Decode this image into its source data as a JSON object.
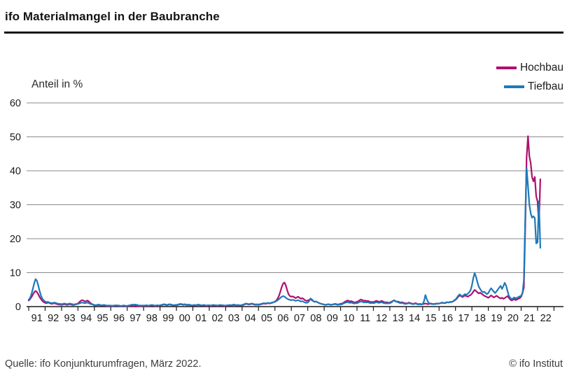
{
  "header": {
    "title": "ifo Materialmangel in der Baubranche"
  },
  "axis_unit_label": "Anteil in %",
  "legend": [
    {
      "label": "Hochbau",
      "color": "#ae106f"
    },
    {
      "label": "Tiefbau",
      "color": "#1e79ba"
    }
  ],
  "footer": {
    "source": "Quelle: ifo Konjunkturumfragen, März 2022.",
    "copyright": "© ifo Institut"
  },
  "chart_data": {
    "type": "line",
    "title": "ifo Materialmangel in der Baubranche",
    "ylabel": "Anteil in %",
    "xlabel": "",
    "ylim": [
      0,
      60
    ],
    "yticks": [
      0,
      10,
      20,
      30,
      40,
      50,
      60
    ],
    "grid": "horizontal",
    "legend_position": "top-right",
    "x_start": "1991-01",
    "x_end": "2022-03",
    "frequency": "monthly",
    "xtick_labels": [
      "91",
      "92",
      "93",
      "94",
      "95",
      "96",
      "97",
      "98",
      "99",
      "00",
      "01",
      "02",
      "03",
      "04",
      "05",
      "06",
      "07",
      "08",
      "09",
      "10",
      "11",
      "12",
      "13",
      "14",
      "15",
      "16",
      "17",
      "18",
      "19",
      "20",
      "21",
      "22"
    ],
    "series": [
      {
        "name": "Hochbau",
        "color": "#ae106f",
        "values": [
          1.8,
          2.2,
          2.8,
          3.5,
          4.2,
          4.6,
          4.3,
          3.6,
          2.8,
          2.2,
          1.7,
          1.3,
          1.1,
          1.0,
          1.2,
          1.1,
          0.9,
          0.8,
          0.9,
          1.0,
          0.8,
          0.7,
          0.6,
          0.6,
          0.5,
          0.6,
          0.7,
          0.6,
          0.5,
          0.6,
          0.7,
          0.6,
          0.5,
          0.5,
          0.6,
          0.7,
          0.9,
          1.3,
          1.7,
          1.9,
          1.8,
          1.5,
          1.6,
          1.8,
          1.5,
          1.1,
          0.8,
          0.6,
          0.4,
          0.3,
          0.4,
          0.5,
          0.4,
          0.3,
          0.3,
          0.4,
          0.3,
          0.2,
          0.2,
          0.2,
          0.2,
          0.1,
          0.2,
          0.2,
          0.3,
          0.2,
          0.2,
          0.1,
          0.1,
          0.2,
          0.2,
          0.1,
          0.1,
          0.2,
          0.2,
          0.3,
          0.2,
          0.2,
          0.3,
          0.2,
          0.2,
          0.1,
          0.1,
          0.2,
          0.2,
          0.2,
          0.3,
          0.2,
          0.2,
          0.3,
          0.4,
          0.3,
          0.2,
          0.2,
          0.3,
          0.2,
          0.3,
          0.4,
          0.5,
          0.6,
          0.5,
          0.4,
          0.5,
          0.6,
          0.5,
          0.4,
          0.3,
          0.4,
          0.4,
          0.5,
          0.6,
          0.7,
          0.6,
          0.5,
          0.6,
          0.5,
          0.4,
          0.5,
          0.4,
          0.3,
          0.3,
          0.4,
          0.3,
          0.4,
          0.5,
          0.4,
          0.3,
          0.3,
          0.4,
          0.3,
          0.2,
          0.3,
          0.3,
          0.2,
          0.3,
          0.4,
          0.3,
          0.3,
          0.2,
          0.3,
          0.4,
          0.3,
          0.3,
          0.2,
          0.2,
          0.3,
          0.3,
          0.4,
          0.3,
          0.4,
          0.5,
          0.4,
          0.3,
          0.4,
          0.3,
          0.3,
          0.4,
          0.5,
          0.7,
          0.8,
          0.7,
          0.6,
          0.7,
          0.8,
          0.7,
          0.6,
          0.5,
          0.6,
          0.5,
          0.6,
          0.7,
          0.8,
          0.9,
          0.8,
          0.9,
          1.0,
          0.9,
          1.0,
          1.1,
          1.3,
          1.5,
          1.8,
          2.4,
          3.2,
          4.5,
          5.8,
          6.8,
          7.1,
          6.2,
          4.8,
          3.6,
          3.1,
          2.9,
          3.0,
          2.8,
          2.5,
          2.7,
          2.9,
          2.6,
          2.3,
          2.5,
          2.2,
          1.9,
          1.7,
          1.8,
          2.0,
          2.2,
          1.9,
          1.6,
          1.4,
          1.5,
          1.3,
          1.1,
          0.9,
          0.8,
          0.7,
          0.6,
          0.5,
          0.6,
          0.7,
          0.6,
          0.5,
          0.6,
          0.7,
          0.8,
          0.7,
          0.6,
          0.7,
          0.8,
          0.9,
          1.1,
          1.4,
          1.6,
          1.8,
          1.7,
          1.5,
          1.6,
          1.4,
          1.2,
          1.3,
          1.4,
          1.6,
          1.9,
          2.1,
          1.9,
          1.7,
          1.8,
          1.6,
          1.7,
          1.5,
          1.3,
          1.4,
          1.3,
          1.5,
          1.7,
          1.6,
          1.4,
          1.5,
          1.7,
          1.5,
          1.3,
          1.2,
          1.3,
          1.1,
          1.2,
          1.4,
          1.6,
          1.8,
          1.6,
          1.4,
          1.5,
          1.3,
          1.2,
          1.3,
          1.1,
          1.0,
          0.9,
          1.0,
          1.2,
          1.0,
          0.9,
          0.8,
          0.9,
          1.0,
          0.8,
          0.7,
          0.8,
          0.7,
          0.7,
          0.8,
          0.9,
          0.8,
          0.7,
          0.8,
          0.9,
          0.8,
          0.7,
          0.8,
          0.9,
          0.8,
          0.9,
          1.0,
          1.2,
          1.1,
          1.0,
          1.1,
          1.3,
          1.2,
          1.4,
          1.3,
          1.5,
          1.7,
          2.0,
          2.4,
          2.9,
          3.3,
          3.1,
          2.8,
          3.0,
          3.3,
          3.1,
          2.9,
          3.2,
          3.4,
          3.8,
          4.4,
          4.9,
          4.6,
          4.2,
          3.9,
          4.1,
          3.8,
          3.5,
          3.2,
          3.0,
          2.8,
          2.6,
          2.9,
          3.3,
          3.0,
          2.7,
          2.9,
          3.2,
          2.9,
          2.6,
          2.4,
          2.6,
          2.3,
          2.5,
          2.8,
          3.1,
          2.6,
          2.1,
          1.8,
          2.0,
          2.2,
          1.9,
          2.1,
          2.3,
          2.5,
          2.9,
          4.0,
          5.6,
          23.9,
          43.9,
          50.2,
          44.3,
          42.2,
          38.1,
          36.9,
          38.2,
          32.5,
          31.0,
          24.3,
          37.5
        ]
      },
      {
        "name": "Tiefbau",
        "color": "#1e79ba",
        "values": [
          2.0,
          2.6,
          3.6,
          5.2,
          6.8,
          8.1,
          7.6,
          6.2,
          4.6,
          3.2,
          2.3,
          1.8,
          1.5,
          1.3,
          1.4,
          1.2,
          1.1,
          1.0,
          1.1,
          1.2,
          1.0,
          0.9,
          0.8,
          0.8,
          0.7,
          0.8,
          0.9,
          0.8,
          0.7,
          0.8,
          0.9,
          0.8,
          0.7,
          0.6,
          0.7,
          0.8,
          0.8,
          0.9,
          1.1,
          1.2,
          1.1,
          1.0,
          1.1,
          1.2,
          1.0,
          0.8,
          0.7,
          0.6,
          0.5,
          0.4,
          0.5,
          0.6,
          0.5,
          0.4,
          0.4,
          0.5,
          0.4,
          0.3,
          0.3,
          0.3,
          0.3,
          0.2,
          0.3,
          0.3,
          0.4,
          0.3,
          0.3,
          0.2,
          0.2,
          0.3,
          0.3,
          0.2,
          0.2,
          0.3,
          0.4,
          0.5,
          0.6,
          0.5,
          0.6,
          0.5,
          0.4,
          0.3,
          0.3,
          0.3,
          0.3,
          0.3,
          0.4,
          0.3,
          0.3,
          0.4,
          0.5,
          0.4,
          0.3,
          0.3,
          0.4,
          0.3,
          0.4,
          0.5,
          0.6,
          0.7,
          0.6,
          0.5,
          0.6,
          0.7,
          0.6,
          0.5,
          0.4,
          0.5,
          0.5,
          0.6,
          0.7,
          0.8,
          0.7,
          0.6,
          0.7,
          0.6,
          0.5,
          0.6,
          0.5,
          0.4,
          0.4,
          0.5,
          0.4,
          0.5,
          0.6,
          0.5,
          0.4,
          0.4,
          0.5,
          0.4,
          0.3,
          0.4,
          0.4,
          0.3,
          0.4,
          0.5,
          0.4,
          0.4,
          0.3,
          0.4,
          0.5,
          0.4,
          0.4,
          0.3,
          0.3,
          0.4,
          0.4,
          0.5,
          0.4,
          0.5,
          0.6,
          0.5,
          0.4,
          0.5,
          0.4,
          0.4,
          0.5,
          0.6,
          0.8,
          0.9,
          0.8,
          0.7,
          0.8,
          0.9,
          0.8,
          0.7,
          0.6,
          0.7,
          0.6,
          0.7,
          0.8,
          0.9,
          1.0,
          0.9,
          1.0,
          1.1,
          1.0,
          1.1,
          1.2,
          1.3,
          1.4,
          1.6,
          1.9,
          2.2,
          2.6,
          2.9,
          3.1,
          2.9,
          2.6,
          2.3,
          2.1,
          2.0,
          1.9,
          2.0,
          1.9,
          1.7,
          1.8,
          1.9,
          1.7,
          1.5,
          1.6,
          1.4,
          1.2,
          1.1,
          1.2,
          1.6,
          2.4,
          2.1,
          1.7,
          1.4,
          1.5,
          1.3,
          1.1,
          0.9,
          0.8,
          0.7,
          0.6,
          0.5,
          0.6,
          0.7,
          0.6,
          0.5,
          0.6,
          0.7,
          0.7,
          0.6,
          0.5,
          0.6,
          0.6,
          0.7,
          0.9,
          1.1,
          1.2,
          1.3,
          1.2,
          1.1,
          1.2,
          1.0,
          0.9,
          1.0,
          1.0,
          1.2,
          1.4,
          1.5,
          1.4,
          1.2,
          1.3,
          1.2,
          1.3,
          1.1,
          1.0,
          1.1,
          1.0,
          1.1,
          1.3,
          1.2,
          1.1,
          1.2,
          1.3,
          1.1,
          1.0,
          0.9,
          1.0,
          0.9,
          1.0,
          1.2,
          1.5,
          1.9,
          1.7,
          1.4,
          1.3,
          1.1,
          1.0,
          1.1,
          0.9,
          0.8,
          0.8,
          0.9,
          1.0,
          0.9,
          0.8,
          0.7,
          0.8,
          0.9,
          0.7,
          0.6,
          0.7,
          0.6,
          0.8,
          1.6,
          3.4,
          2.2,
          1.3,
          0.9,
          0.8,
          0.7,
          0.8,
          0.7,
          0.8,
          0.9,
          0.9,
          1.0,
          1.1,
          1.0,
          1.1,
          1.2,
          1.3,
          1.2,
          1.3,
          1.4,
          1.5,
          1.8,
          2.1,
          2.6,
          3.2,
          3.6,
          3.3,
          3.0,
          3.4,
          3.7,
          3.5,
          3.8,
          4.2,
          4.8,
          6.2,
          8.4,
          9.9,
          8.8,
          7.2,
          5.9,
          5.2,
          4.6,
          4.2,
          4.4,
          4.0,
          3.7,
          4.0,
          4.8,
          5.4,
          4.9,
          4.4,
          4.0,
          4.5,
          5.0,
          5.6,
          6.1,
          5.2,
          6.0,
          7.0,
          6.2,
          4.6,
          3.2,
          2.6,
          2.2,
          2.4,
          2.7,
          2.4,
          2.6,
          2.8,
          3.0,
          3.2,
          4.1,
          7.8,
          26.5,
          40.8,
          35.5,
          30.1,
          27.4,
          26.2,
          26.6,
          26.1,
          18.6,
          18.9,
          31.0,
          17.3
        ]
      }
    ]
  }
}
